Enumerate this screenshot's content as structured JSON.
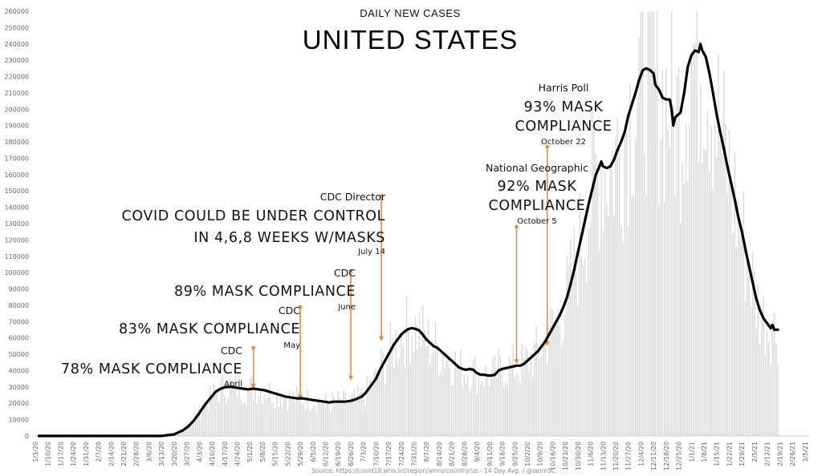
{
  "chart_data": {
    "type": "line",
    "title": "UNITED STATES",
    "subtitle": "DAILY NEW CASES",
    "xlabel": "",
    "ylabel": "",
    "ylim": [
      0,
      260000
    ],
    "grid": false,
    "y_ticks": [
      0,
      10000,
      20000,
      30000,
      40000,
      50000,
      60000,
      70000,
      80000,
      90000,
      100000,
      110000,
      120000,
      130000,
      140000,
      150000,
      160000,
      170000,
      180000,
      190000,
      200000,
      210000,
      220000,
      230000,
      240000,
      250000,
      260000
    ],
    "x_ticks": [
      "1/3/20",
      "1/10/20",
      "1/17/20",
      "1/24/20",
      "1/31/20",
      "2/7/20",
      "2/14/20",
      "2/21/20",
      "2/28/20",
      "3/6/20",
      "3/13/20",
      "3/20/20",
      "3/27/20",
      "4/3/20",
      "4/10/20",
      "4/17/20",
      "4/24/20",
      "5/1/20",
      "5/8/20",
      "5/15/20",
      "5/22/20",
      "5/29/20",
      "6/5/20",
      "6/12/20",
      "6/19/20",
      "6/26/20",
      "7/3/20",
      "7/10/20",
      "7/17/20",
      "7/24/20",
      "7/31/20",
      "8/7/20",
      "8/14/20",
      "8/21/20",
      "8/28/20",
      "9/4/20",
      "9/11/20",
      "9/18/20",
      "9/25/20",
      "10/2/20",
      "10/9/20",
      "10/16/20",
      "10/23/20",
      "10/30/20",
      "11/6/20",
      "11/13/20",
      "11/20/20",
      "11/27/20",
      "12/4/20",
      "12/11/20",
      "12/18/20",
      "12/25/20",
      "1/1/21",
      "1/8/21",
      "1/15/21",
      "1/22/21",
      "1/29/21",
      "2/5/21",
      "2/12/21",
      "2/19/21",
      "2/26/21",
      "3/5/21"
    ],
    "series": [
      {
        "name": "14 Day Avg.",
        "points": [
          [
            2,
            0
          ],
          [
            20,
            0
          ],
          [
            40,
            0
          ],
          [
            60,
            0
          ],
          [
            70,
            0
          ],
          [
            77,
            1000
          ],
          [
            82,
            3500
          ],
          [
            85,
            6000
          ],
          [
            88,
            9500
          ],
          [
            91,
            14000
          ],
          [
            94,
            19000
          ],
          [
            97,
            23000
          ],
          [
            100,
            27000
          ],
          [
            103,
            29000
          ],
          [
            106,
            30000
          ],
          [
            109,
            30000
          ],
          [
            112,
            29500
          ],
          [
            115,
            29000
          ],
          [
            118,
            28500
          ],
          [
            121,
            29000
          ],
          [
            124,
            28500
          ],
          [
            127,
            28000
          ],
          [
            130,
            27000
          ],
          [
            133,
            26000
          ],
          [
            136,
            25000
          ],
          [
            139,
            24000
          ],
          [
            142,
            23500
          ],
          [
            145,
            23000
          ],
          [
            148,
            23000
          ],
          [
            151,
            22500
          ],
          [
            154,
            22000
          ],
          [
            157,
            21500
          ],
          [
            160,
            21000
          ],
          [
            163,
            20500
          ],
          [
            166,
            21000
          ],
          [
            169,
            21000
          ],
          [
            172,
            21000
          ],
          [
            175,
            21500
          ],
          [
            178,
            22500
          ],
          [
            181,
            24000
          ],
          [
            183,
            26000
          ],
          [
            185,
            29000
          ],
          [
            187,
            32000
          ],
          [
            189,
            35000
          ],
          [
            191,
            40000
          ],
          [
            193,
            44000
          ],
          [
            195,
            48000
          ],
          [
            197,
            52000
          ],
          [
            199,
            56000
          ],
          [
            201,
            59000
          ],
          [
            203,
            62000
          ],
          [
            205,
            64000
          ],
          [
            207,
            65500
          ],
          [
            209,
            66000
          ],
          [
            211,
            65500
          ],
          [
            213,
            64500
          ],
          [
            215,
            62000
          ],
          [
            217,
            59000
          ],
          [
            219,
            57000
          ],
          [
            221,
            55000
          ],
          [
            223,
            54000
          ],
          [
            225,
            52000
          ],
          [
            227,
            50000
          ],
          [
            229,
            48000
          ],
          [
            231,
            46000
          ],
          [
            233,
            44000
          ],
          [
            235,
            42000
          ],
          [
            237,
            41000
          ],
          [
            239,
            40500
          ],
          [
            241,
            41000
          ],
          [
            243,
            40500
          ],
          [
            245,
            38500
          ],
          [
            247,
            37500
          ],
          [
            249,
            37500
          ],
          [
            251,
            37000
          ],
          [
            253,
            37000
          ],
          [
            255,
            37500
          ],
          [
            257,
            40000
          ],
          [
            259,
            41000
          ],
          [
            261,
            41500
          ],
          [
            263,
            42000
          ],
          [
            265,
            42500
          ],
          [
            267,
            43000
          ],
          [
            269,
            43000
          ],
          [
            271,
            44000
          ],
          [
            273,
            46000
          ],
          [
            275,
            48000
          ],
          [
            277,
            50000
          ],
          [
            279,
            52000
          ],
          [
            281,
            55000
          ],
          [
            283,
            58000
          ],
          [
            285,
            62000
          ],
          [
            287,
            66000
          ],
          [
            289,
            70000
          ],
          [
            291,
            74000
          ],
          [
            293,
            79000
          ],
          [
            295,
            85000
          ],
          [
            297,
            93000
          ],
          [
            299,
            102000
          ],
          [
            301,
            112000
          ],
          [
            303,
            122000
          ],
          [
            305,
            132000
          ],
          [
            307,
            142000
          ],
          [
            309,
            151000
          ],
          [
            311,
            160000
          ],
          [
            313,
            165000
          ],
          [
            314,
            168000
          ],
          [
            315,
            165000
          ],
          [
            317,
            164000
          ],
          [
            319,
            165000
          ],
          [
            321,
            169000
          ],
          [
            323,
            175000
          ],
          [
            325,
            180000
          ],
          [
            327,
            186000
          ],
          [
            329,
            196000
          ],
          [
            331,
            203000
          ],
          [
            333,
            210000
          ],
          [
            335,
            218000
          ],
          [
            337,
            224000
          ],
          [
            339,
            225000
          ],
          [
            341,
            224000
          ],
          [
            343,
            222000
          ],
          [
            344,
            215000
          ],
          [
            346,
            212000
          ],
          [
            348,
            207000
          ],
          [
            350,
            206000
          ],
          [
            352,
            206000
          ],
          [
            353,
            200000
          ],
          [
            354,
            190000
          ],
          [
            355,
            195000
          ],
          [
            356,
            196000
          ],
          [
            358,
            198000
          ],
          [
            360,
            210000
          ],
          [
            362,
            226000
          ],
          [
            364,
            233000
          ],
          [
            366,
            236000
          ],
          [
            368,
            235000
          ],
          [
            369,
            240000
          ],
          [
            370,
            236000
          ],
          [
            372,
            232000
          ],
          [
            374,
            222000
          ],
          [
            376,
            210000
          ],
          [
            378,
            197000
          ],
          [
            380,
            186000
          ],
          [
            382,
            176000
          ],
          [
            384,
            165000
          ],
          [
            386,
            155000
          ],
          [
            388,
            145000
          ],
          [
            390,
            134000
          ],
          [
            392,
            125000
          ],
          [
            394,
            114000
          ],
          [
            396,
            104000
          ],
          [
            398,
            94000
          ],
          [
            400,
            84000
          ],
          [
            402,
            77000
          ],
          [
            404,
            72000
          ],
          [
            406,
            69000
          ],
          [
            408,
            66000
          ],
          [
            409,
            68000
          ],
          [
            410,
            65000
          ],
          [
            412,
            65000
          ]
        ]
      }
    ],
    "annotations": [
      {
        "headline": "78% MASK COMPLIANCE",
        "label": "CDC",
        "date": "April",
        "x": 121,
        "y_top": 54000,
        "y_bottom": 29000
      },
      {
        "headline": "83% MASK COMPLIANCE",
        "label": "CDC",
        "date": "May",
        "x": 147,
        "y_top": 79000,
        "y_bottom": 22000
      },
      {
        "headline": "89% MASK COMPLIANCE",
        "label": "CDC",
        "date": "June",
        "x": 175,
        "y_top": 101000,
        "y_bottom": 34000
      },
      {
        "headline": "COVID COULD BE UNDER CONTROL",
        "headline2": "IN 4,6,8 WEEKS W/MASKS",
        "label": "CDC Director",
        "date": "July 14",
        "x": 192,
        "y_top": 147000,
        "y_bottom": 58000
      },
      {
        "headline": "92% MASK",
        "headline2": "COMPLIANCE",
        "label": "National Geographic",
        "date": "October 5",
        "x": 267,
        "y_top": 128000,
        "y_bottom": 44000
      },
      {
        "headline": "93% MASK",
        "headline2": "COMPLIANCE",
        "label": "Harris Poll",
        "date": "October 22",
        "x": 284,
        "y_top": 177000,
        "y_bottom": 55000
      }
    ],
    "source": "Source: https://covid19.who.int/region/amro/country/us - 14 Day Avg. / @ianmSC"
  },
  "colors": {
    "line": "#000000",
    "marker": "#e38b3e",
    "bars": "#d9d9d9",
    "tick": "#666666"
  }
}
